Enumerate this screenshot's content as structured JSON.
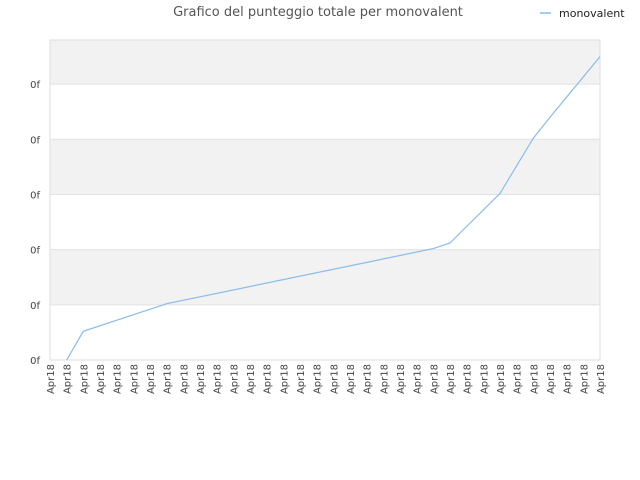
{
  "chart_data": {
    "type": "line",
    "title": "Grafico del punteggio totale per monovalent",
    "xlabel": "",
    "ylabel": "",
    "legend": {
      "position": "top-right",
      "entries": [
        "monovalent"
      ]
    },
    "grid": true,
    "y_tick_labels": [
      "0f",
      "0f",
      "0f",
      "0f",
      "0f",
      "0f"
    ],
    "x_tick_labels": [
      "Apr18",
      "Apr18",
      "Apr18",
      "Apr18",
      "Apr18",
      "Apr18",
      "Apr18",
      "Apr18",
      "Apr18",
      "Apr18",
      "Apr18",
      "Apr18",
      "Apr18",
      "Apr18",
      "Apr18",
      "Apr18",
      "Apr18",
      "Apr18",
      "Apr18",
      "Apr18",
      "Apr18",
      "Apr18",
      "Apr18",
      "Apr18",
      "Apr18",
      "Apr18",
      "Apr18",
      "Apr18",
      "Apr18",
      "Apr18",
      "Apr18",
      "Apr18",
      "Apr18",
      "Apr18"
    ],
    "ylim": [
      0,
      5.8
    ],
    "series": [
      {
        "name": "monovalent",
        "color": "#88bbee",
        "x": [
          1,
          2,
          7,
          23,
          24,
          27,
          29,
          30,
          33
        ],
        "y": [
          0,
          0.52,
          1.02,
          2.02,
          2.12,
          3.02,
          4.02,
          4.4,
          5.5
        ]
      }
    ]
  }
}
